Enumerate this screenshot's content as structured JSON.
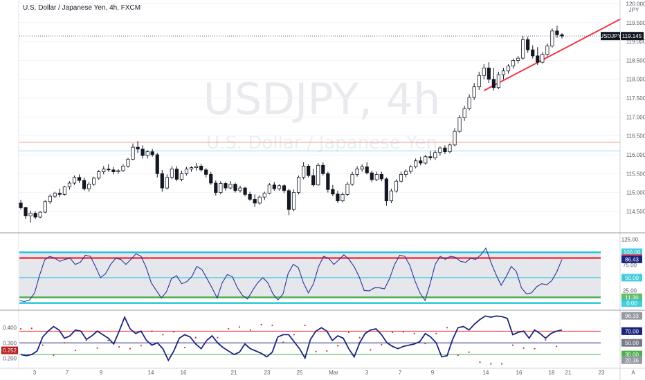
{
  "header": {
    "title": "U.S. Dollar / Japanese Yen, 4h, FXCM",
    "currency": "JPY"
  },
  "watermark": {
    "symbol": "USDJPY, 4h",
    "description": "U.S. Dollar / Japanese Yen"
  },
  "chart_data": [
    {
      "type": "candlestick",
      "pane": "price",
      "symbol": "USDJPY",
      "price_tag": "119.145",
      "last_price": 119.145,
      "y_ticks": [
        "114.500",
        "115.000",
        "115.500",
        "116.000",
        "116.500",
        "117.000",
        "117.500",
        "118.000",
        "118.500",
        "119.000",
        "119.500",
        "120.000"
      ],
      "ylim": [
        113.95,
        120.1
      ],
      "x_ticks": [
        "3",
        "7",
        "9",
        "14",
        "16",
        "21",
        "23",
        "25",
        "Mar",
        "3",
        "7",
        "9",
        "14",
        "16",
        "18",
        "21",
        "23",
        "A"
      ],
      "horizontal_levels": [
        {
          "value": 116.33,
          "color": "#ef9a9a"
        },
        {
          "value": 116.1,
          "color": "#80deea"
        }
      ],
      "trendline": {
        "from": 117.7,
        "to": 119.6,
        "color": "#f23645"
      },
      "candles": [
        [
          114.72,
          114.8,
          114.55,
          114.6
        ],
        [
          114.6,
          114.62,
          114.3,
          114.38
        ],
        [
          114.38,
          114.52,
          114.2,
          114.45
        ],
        [
          114.45,
          114.5,
          114.3,
          114.35
        ],
        [
          114.35,
          114.5,
          114.32,
          114.48
        ],
        [
          114.48,
          114.8,
          114.45,
          114.76
        ],
        [
          114.76,
          114.95,
          114.7,
          114.9
        ],
        [
          114.9,
          115.02,
          114.85,
          114.98
        ],
        [
          114.98,
          115.1,
          114.88,
          114.95
        ],
        [
          114.95,
          115.18,
          114.92,
          115.15
        ],
        [
          115.15,
          115.3,
          115.08,
          115.25
        ],
        [
          115.25,
          115.45,
          115.2,
          115.4
        ],
        [
          115.4,
          115.48,
          115.25,
          115.32
        ],
        [
          115.32,
          115.4,
          115.05,
          115.1
        ],
        [
          115.1,
          115.28,
          115.02,
          115.22
        ],
        [
          115.22,
          115.42,
          115.18,
          115.38
        ],
        [
          115.38,
          115.6,
          115.34,
          115.55
        ],
        [
          115.55,
          115.7,
          115.48,
          115.62
        ],
        [
          115.62,
          115.75,
          115.55,
          115.6
        ],
        [
          115.6,
          115.68,
          115.48,
          115.55
        ],
        [
          115.55,
          115.62,
          115.5,
          115.58
        ],
        [
          115.58,
          115.75,
          115.55,
          115.7
        ],
        [
          115.7,
          115.92,
          115.66,
          115.88
        ],
        [
          115.88,
          116.3,
          115.85,
          116.2
        ],
        [
          116.2,
          116.36,
          116.05,
          116.15
        ],
        [
          116.15,
          116.25,
          115.9,
          115.98
        ],
        [
          115.98,
          116.12,
          115.9,
          116.08
        ],
        [
          116.08,
          116.15,
          115.95,
          116.0
        ],
        [
          116.0,
          116.05,
          115.4,
          115.5
        ],
        [
          115.5,
          115.6,
          115.02,
          115.12
        ],
        [
          115.12,
          115.48,
          115.08,
          115.4
        ],
        [
          115.4,
          115.7,
          115.35,
          115.62
        ],
        [
          115.62,
          115.7,
          115.3,
          115.35
        ],
        [
          115.35,
          115.58,
          115.3,
          115.5
        ],
        [
          115.5,
          115.68,
          115.45,
          115.62
        ],
        [
          115.62,
          115.7,
          115.55,
          115.66
        ],
        [
          115.66,
          115.78,
          115.58,
          115.7
        ],
        [
          115.7,
          115.76,
          115.55,
          115.6
        ],
        [
          115.6,
          115.65,
          115.4,
          115.48
        ],
        [
          115.48,
          115.55,
          115.2,
          115.25
        ],
        [
          115.25,
          115.32,
          114.92,
          115.0
        ],
        [
          115.0,
          115.3,
          114.95,
          115.24
        ],
        [
          115.24,
          115.28,
          115.05,
          115.12
        ],
        [
          115.12,
          115.3,
          115.08,
          115.22
        ],
        [
          115.22,
          115.26,
          115.0,
          115.05
        ],
        [
          115.05,
          115.18,
          115.0,
          115.12
        ],
        [
          115.12,
          115.15,
          114.9,
          114.95
        ],
        [
          114.95,
          115.02,
          114.78,
          114.82
        ],
        [
          114.82,
          114.95,
          114.62,
          114.72
        ],
        [
          114.72,
          114.92,
          114.68,
          114.88
        ],
        [
          114.88,
          115.02,
          114.8,
          114.98
        ],
        [
          114.98,
          115.25,
          114.95,
          115.2
        ],
        [
          115.2,
          115.28,
          115.05,
          115.1
        ],
        [
          115.1,
          115.22,
          115.05,
          115.18
        ],
        [
          115.18,
          115.22,
          114.98,
          115.05
        ],
        [
          115.05,
          115.1,
          114.4,
          114.55
        ],
        [
          114.55,
          115.08,
          114.5,
          115.0
        ],
        [
          115.0,
          115.45,
          114.95,
          115.4
        ],
        [
          115.4,
          115.8,
          115.35,
          115.7
        ],
        [
          115.7,
          115.75,
          115.4,
          115.45
        ],
        [
          115.45,
          115.62,
          115.15,
          115.2
        ],
        [
          115.2,
          115.78,
          115.18,
          115.72
        ],
        [
          115.72,
          115.8,
          115.45,
          115.5
        ],
        [
          115.5,
          115.55,
          115.0,
          115.08
        ],
        [
          115.08,
          115.2,
          114.9,
          114.96
        ],
        [
          114.96,
          115.05,
          114.72,
          114.78
        ],
        [
          114.78,
          115.0,
          114.74,
          114.95
        ],
        [
          114.95,
          115.28,
          114.9,
          115.22
        ],
        [
          115.22,
          115.55,
          115.18,
          115.48
        ],
        [
          115.48,
          115.7,
          115.42,
          115.62
        ],
        [
          115.62,
          115.75,
          115.55,
          115.68
        ],
        [
          115.68,
          115.8,
          115.48,
          115.52
        ],
        [
          115.52,
          115.58,
          115.28,
          115.34
        ],
        [
          115.34,
          115.55,
          115.3,
          115.48
        ],
        [
          115.48,
          115.55,
          115.3,
          115.36
        ],
        [
          115.36,
          115.4,
          114.65,
          114.78
        ],
        [
          114.78,
          115.1,
          114.72,
          115.04
        ],
        [
          115.04,
          115.35,
          115.0,
          115.3
        ],
        [
          115.3,
          115.55,
          115.26,
          115.48
        ],
        [
          115.48,
          115.62,
          115.4,
          115.56
        ],
        [
          115.56,
          115.72,
          115.5,
          115.68
        ],
        [
          115.68,
          115.9,
          115.64,
          115.84
        ],
        [
          115.84,
          115.95,
          115.72,
          115.78
        ],
        [
          115.78,
          116.0,
          115.74,
          115.95
        ],
        [
          115.95,
          116.1,
          115.85,
          115.92
        ],
        [
          115.92,
          116.12,
          115.86,
          116.06
        ],
        [
          116.06,
          116.22,
          115.98,
          116.18
        ],
        [
          116.18,
          116.25,
          116.02,
          116.08
        ],
        [
          116.08,
          116.3,
          116.04,
          116.26
        ],
        [
          116.26,
          116.7,
          116.22,
          116.62
        ],
        [
          116.62,
          117.05,
          116.58,
          116.98
        ],
        [
          116.98,
          117.3,
          116.9,
          117.22
        ],
        [
          117.22,
          117.6,
          117.18,
          117.52
        ],
        [
          117.52,
          117.9,
          117.45,
          117.8
        ],
        [
          117.8,
          118.2,
          117.72,
          118.1
        ],
        [
          118.1,
          118.4,
          118.0,
          118.3
        ],
        [
          118.3,
          118.45,
          117.9,
          118.0
        ],
        [
          118.0,
          118.3,
          117.7,
          117.78
        ],
        [
          117.78,
          118.2,
          117.74,
          118.12
        ],
        [
          118.12,
          118.3,
          118.0,
          118.22
        ],
        [
          118.22,
          118.4,
          118.15,
          118.35
        ],
        [
          118.35,
          118.55,
          118.28,
          118.5
        ],
        [
          118.5,
          118.62,
          118.42,
          118.56
        ],
        [
          118.56,
          119.15,
          118.52,
          119.05
        ],
        [
          119.05,
          119.12,
          118.7,
          118.78
        ],
        [
          118.78,
          118.9,
          118.55,
          118.62
        ],
        [
          118.62,
          118.85,
          118.38,
          118.45
        ],
        [
          118.45,
          118.72,
          118.42,
          118.66
        ],
        [
          118.66,
          118.95,
          118.6,
          118.88
        ],
        [
          118.88,
          119.35,
          118.84,
          119.28
        ],
        [
          119.28,
          119.42,
          119.1,
          119.18
        ],
        [
          119.18,
          119.22,
          119.08,
          119.145
        ]
      ]
    },
    {
      "type": "line",
      "pane": "oscillator-1",
      "y_ticks": [
        "25.00",
        "50.00",
        "75.00",
        "100.00",
        "125.00"
      ],
      "ylim": [
        -10,
        130
      ],
      "levels": [
        {
          "label": "100.00",
          "value": 100,
          "color": "#26c6da",
          "tag": "#26c6da"
        },
        {
          "label": "88.60",
          "value": 88.6,
          "color": "#f23645",
          "tag": "#f23645"
        },
        {
          "label": "50.00",
          "value": 50,
          "color": "#26c6da",
          "tag": "#26c6da"
        },
        {
          "label": "11.30",
          "value": 11.3,
          "color": "#4caf50",
          "tag": "#4caf50"
        },
        {
          "label": "0.00",
          "value": 0,
          "color": "#26c6da",
          "tag": "#26c6da"
        }
      ],
      "current_label": "86.43",
      "values": [
        5,
        3,
        6,
        20,
        55,
        85,
        92,
        88,
        82,
        86,
        88,
        76,
        80,
        94,
        92,
        72,
        50,
        58,
        76,
        88,
        86,
        76,
        86,
        97,
        92,
        70,
        40,
        25,
        10,
        22,
        48,
        54,
        38,
        42,
        52,
        72,
        66,
        48,
        30,
        10,
        40,
        56,
        52,
        30,
        15,
        8,
        25,
        40,
        50,
        40,
        18,
        6,
        18,
        58,
        76,
        70,
        40,
        20,
        38,
        72,
        92,
        88,
        76,
        85,
        95,
        86,
        72,
        52,
        25,
        24,
        30,
        30,
        28,
        48,
        76,
        94,
        92,
        74,
        44,
        20,
        5,
        38,
        76,
        92,
        86,
        92,
        90,
        82,
        80,
        88,
        86,
        95,
        108,
        80,
        56,
        35,
        52,
        72,
        62,
        30,
        18,
        20,
        32,
        38,
        36,
        44,
        62,
        86
      ]
    },
    {
      "type": "line",
      "pane": "oscillator-2",
      "y_ticks": [
        "0.200",
        "0.300",
        "0.400"
      ],
      "ylim": [
        0.14,
        0.5
      ],
      "level_tags": [
        {
          "label": "96.33",
          "value": 96.33,
          "color": "#9598a1"
        },
        {
          "label": "70.14",
          "value": 70.14,
          "color": "#1a237e"
        },
        {
          "label": "70.00",
          "value": 70.0,
          "color": "#1a237e"
        },
        {
          "label": "50.00",
          "value": 50.0,
          "color": "#787b86"
        },
        {
          "label": "30.00",
          "value": 30.0,
          "color": "#4caf50"
        },
        {
          "label": "20.36",
          "value": 20.36,
          "color": "#9598a1"
        }
      ],
      "current_label": "0.252",
      "values": [
        30,
        28,
        30,
        36,
        60,
        70,
        78,
        72,
        58,
        62,
        72,
        70,
        56,
        62,
        70,
        64,
        58,
        48,
        70,
        94,
        74,
        66,
        70,
        54,
        46,
        50,
        40,
        20,
        36,
        58,
        64,
        60,
        48,
        40,
        54,
        62,
        50,
        42,
        36,
        30,
        34,
        48,
        40,
        36,
        32,
        26,
        34,
        60,
        64,
        64,
        52,
        40,
        24,
        56,
        70,
        76,
        70,
        54,
        62,
        58,
        40,
        26,
        50,
        66,
        72,
        74,
        64,
        50,
        44,
        40,
        44,
        46,
        48,
        52,
        66,
        60,
        50,
        26,
        28,
        56,
        76,
        78,
        72,
        82,
        90,
        96,
        94,
        96,
        95,
        92,
        64,
        68,
        70,
        58,
        72,
        66,
        58,
        66,
        70,
        72
      ]
    }
  ]
}
